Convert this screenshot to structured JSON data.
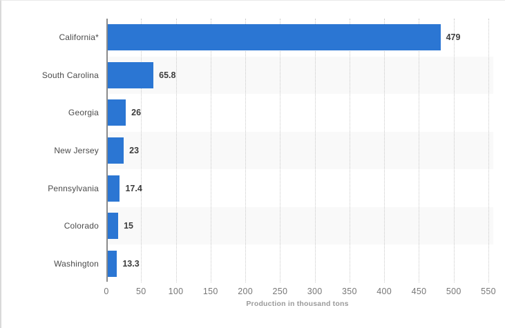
{
  "chart_data": {
    "type": "bar",
    "orientation": "horizontal",
    "title": "",
    "xlabel": "Production in thousand tons",
    "ylabel": "",
    "categories": [
      "California*",
      "South Carolina",
      "Georgia",
      "New Jersey",
      "Pennsylvania",
      "Colorado",
      "Washington"
    ],
    "values": [
      479,
      65.8,
      26,
      23,
      17.4,
      15,
      13.3
    ],
    "xlim": [
      0,
      550
    ],
    "xticks": [
      0,
      50,
      100,
      150,
      200,
      250,
      300,
      350,
      400,
      450,
      500,
      550
    ],
    "grid": "vertical-dotted",
    "legend": "none",
    "bar_color": "#2b76d3",
    "row_alt_color": "#f9f9f9",
    "gridline_color": "#c8c8c8",
    "axis_line_color": "#8a8a8a"
  }
}
